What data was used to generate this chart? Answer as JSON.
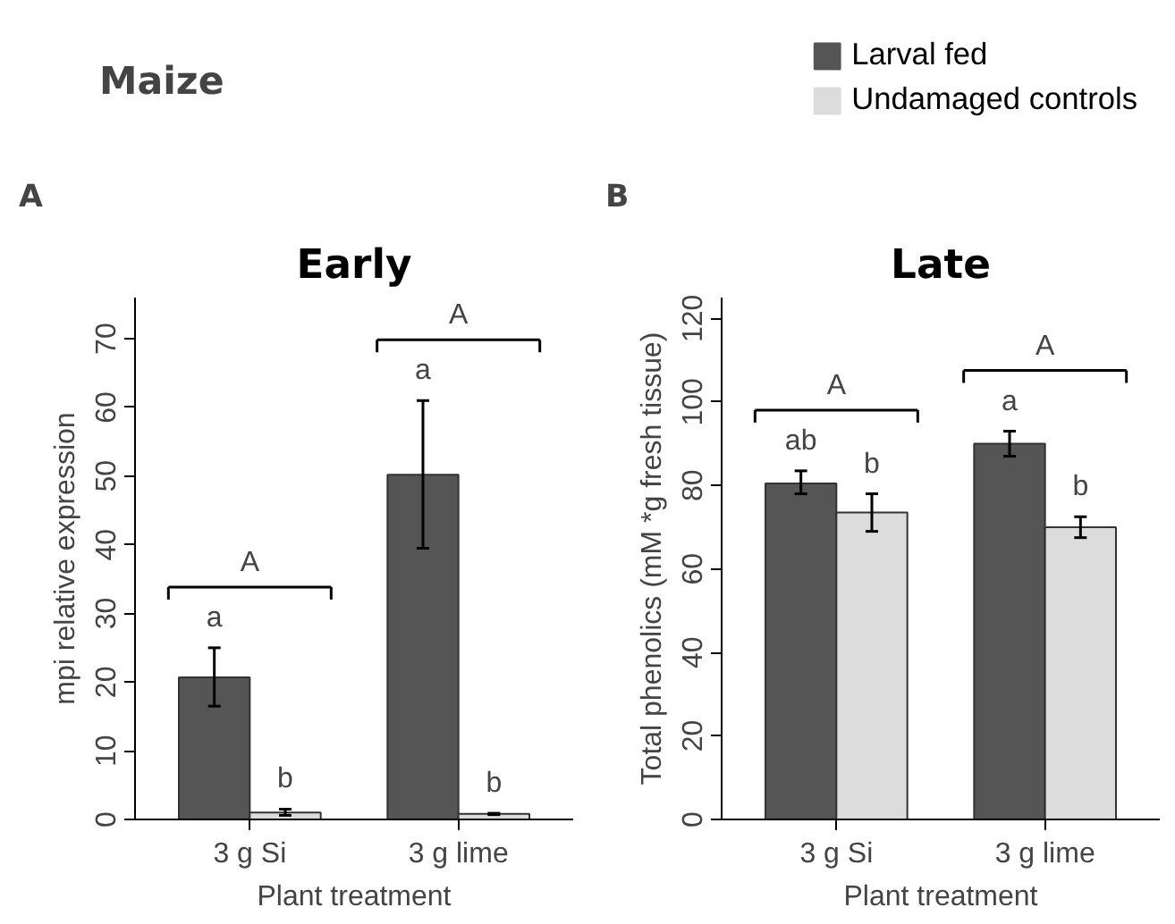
{
  "chart_data": [
    {
      "type": "bar",
      "title": "Early",
      "xlabel": "Plant treatment",
      "ylabel": "mpi relative expression",
      "categories": [
        "3 g Si",
        "3 g lime"
      ],
      "series": [
        {
          "color": "#555555",
          "values": [
            20.7,
            50.2
          ],
          "errors": [
            [
              16.5,
              25
            ],
            [
              39.5,
              61
            ]
          ]
        },
        {
          "color": "#dcdcdc",
          "values": [
            1.0,
            0.8
          ],
          "errors": [
            [
              0.6,
              1.5
            ],
            [
              0.7,
              0.9
            ]
          ]
        }
      ],
      "ylim": [
        0,
        76
      ],
      "yticks": [
        0,
        10,
        20,
        30,
        40,
        50,
        60,
        70
      ],
      "grid": false,
      "annotations": [
        "Maize",
        "A",
        "a",
        "b",
        "A",
        "a",
        "b",
        "A"
      ]
    },
    {
      "type": "bar",
      "title": "Late",
      "xlabel": "Plant treatment",
      "ylabel": "Total phenolics (mM *g fresh tissue)",
      "categories": [
        "3 g Si",
        "3 g lime"
      ],
      "series": [
        {
          "name": "Larval fed",
          "color": "#555555",
          "values": [
            80.5,
            90
          ],
          "errors": [
            [
              78,
              83.5
            ],
            [
              87,
              93
            ]
          ]
        },
        {
          "name": "Undamaged controls",
          "color": "#dcdcdc",
          "values": [
            73.5,
            70
          ],
          "errors": [
            [
              69,
              78
            ],
            [
              67.5,
              72.5
            ]
          ]
        }
      ],
      "ylim": [
        0,
        125
      ],
      "yticks": [
        0,
        20,
        40,
        60,
        80,
        100,
        120
      ],
      "grid": false,
      "legend": "top right",
      "annotations": [
        "B",
        "ab",
        "b",
        "A",
        "a",
        "b",
        "A"
      ]
    }
  ]
}
